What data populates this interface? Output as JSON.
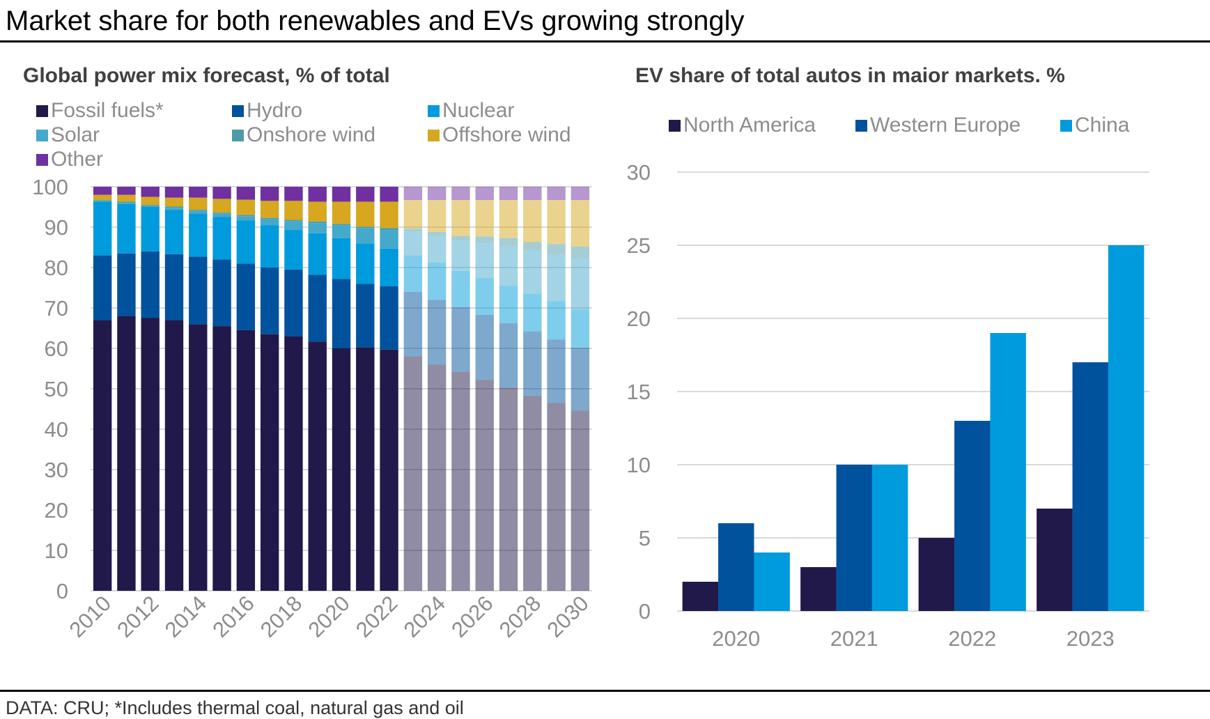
{
  "page": {
    "title": "Market share for both renewables and EVs growing strongly",
    "source": "DATA: CRU; *Includes thermal coal, natural gas and oil"
  },
  "colors": {
    "fossil": "#20194a",
    "hydro": "#00529c",
    "nuclear": "#009bdc",
    "solar": "#45a9cc",
    "onshore": "#4e9ba8",
    "offshore": "#d6a71f",
    "other": "#7030a0",
    "gridline": "#d9d9d9",
    "axis_text": "#8c8c8c"
  },
  "chart_data": [
    {
      "type": "bar",
      "stacked": true,
      "title": "Global power mix forecast, % of total",
      "xlabel": "",
      "ylabel": "",
      "ylim": [
        0,
        100
      ],
      "yticks": [
        "0",
        "10",
        "20",
        "30",
        "40",
        "50",
        "60",
        "70",
        "80",
        "90",
        "100"
      ],
      "grid": true,
      "legend_position": "top-left",
      "forecast_from": "2023",
      "categories": [
        "2010",
        "2011",
        "2012",
        "2013",
        "2014",
        "2015",
        "2016",
        "2017",
        "2018",
        "2019",
        "2020",
        "2021",
        "2022",
        "2023",
        "2024",
        "2025",
        "2026",
        "2027",
        "2028",
        "2029",
        "2030"
      ],
      "xtick_labels": [
        "2010",
        "2012",
        "2014",
        "2016",
        "2018",
        "2020",
        "2022",
        "2024",
        "2026",
        "2028",
        "2030"
      ],
      "series": [
        {
          "name": "Fossil fuels*",
          "key": "fossil",
          "values": [
            67,
            68,
            67.5,
            67,
            66,
            65.5,
            64.5,
            63.5,
            63,
            61.7,
            60,
            60.3,
            59.7,
            58,
            56,
            54.2,
            52.2,
            50.3,
            48.3,
            46.5,
            44.6
          ]
        },
        {
          "name": "Hydro",
          "key": "hydro",
          "values": [
            16,
            15.5,
            16.5,
            16.3,
            16.7,
            16.5,
            16.5,
            16.5,
            16.5,
            16.5,
            17.2,
            15.7,
            15.7,
            16,
            16,
            16,
            16.1,
            15.9,
            15.9,
            15.7,
            15.6
          ]
        },
        {
          "name": "Nuclear",
          "key": "nuclear",
          "values": [
            13.3,
            12.3,
            11,
            11,
            10.7,
            10.5,
            10.7,
            10.5,
            9.8,
            10.3,
            10.1,
            10,
            9.3,
            9,
            9.2,
            9,
            9.1,
            9.3,
            9.3,
            9.5,
            9.4
          ]
        },
        {
          "name": "Solar",
          "key": "solar",
          "values": [
            0.2,
            0.2,
            0.2,
            0.5,
            0.6,
            0.8,
            1,
            1.5,
            2.2,
            2.5,
            3.2,
            3.8,
            4.6,
            6,
            6.6,
            7.5,
            8.6,
            9.8,
            10.7,
            11.6,
            12.6
          ]
        },
        {
          "name": "Onshore wind",
          "key": "onshore",
          "values": [
            0.2,
            0.3,
            0.3,
            0.3,
            0.3,
            0.3,
            0.3,
            0.3,
            0.3,
            0.4,
            0.3,
            0.3,
            0.5,
            0.6,
            1,
            1.1,
            1.7,
            2,
            2.1,
            2.5,
            3
          ]
        },
        {
          "name": "Offshore wind",
          "key": "offshore",
          "values": [
            1.3,
            1.7,
            2,
            2.2,
            3,
            3.4,
            3.8,
            4.2,
            4.7,
            4.9,
            5.5,
            6.2,
            6.5,
            7.1,
            7.9,
            8.9,
            9,
            9.4,
            10.4,
            10.9,
            11.5
          ]
        },
        {
          "name": "Other",
          "key": "other",
          "values": [
            2,
            2,
            2.5,
            2.7,
            2.7,
            3,
            3.2,
            3.5,
            3.5,
            3.7,
            3.7,
            3.7,
            3.7,
            3.3,
            3.3,
            3.3,
            3.3,
            3.3,
            3.3,
            3.3,
            3.3
          ]
        }
      ]
    },
    {
      "type": "bar",
      "stacked": false,
      "title": "EV share of total autos in maior markets. %",
      "xlabel": "",
      "ylabel": "",
      "ylim": [
        0,
        30
      ],
      "yticks": [
        "0",
        "5",
        "10",
        "15",
        "20",
        "25",
        "30"
      ],
      "grid": true,
      "legend_position": "top",
      "categories": [
        "2020",
        "2021",
        "2022",
        "2023"
      ],
      "series": [
        {
          "name": "North America",
          "color": "#20194a",
          "values": [
            2,
            3,
            5,
            7
          ]
        },
        {
          "name": "Western Europe",
          "color": "#00529c",
          "values": [
            6,
            10,
            13,
            17
          ]
        },
        {
          "name": "China",
          "color": "#009bdc",
          "values": [
            4,
            10,
            19,
            25
          ]
        }
      ]
    }
  ]
}
